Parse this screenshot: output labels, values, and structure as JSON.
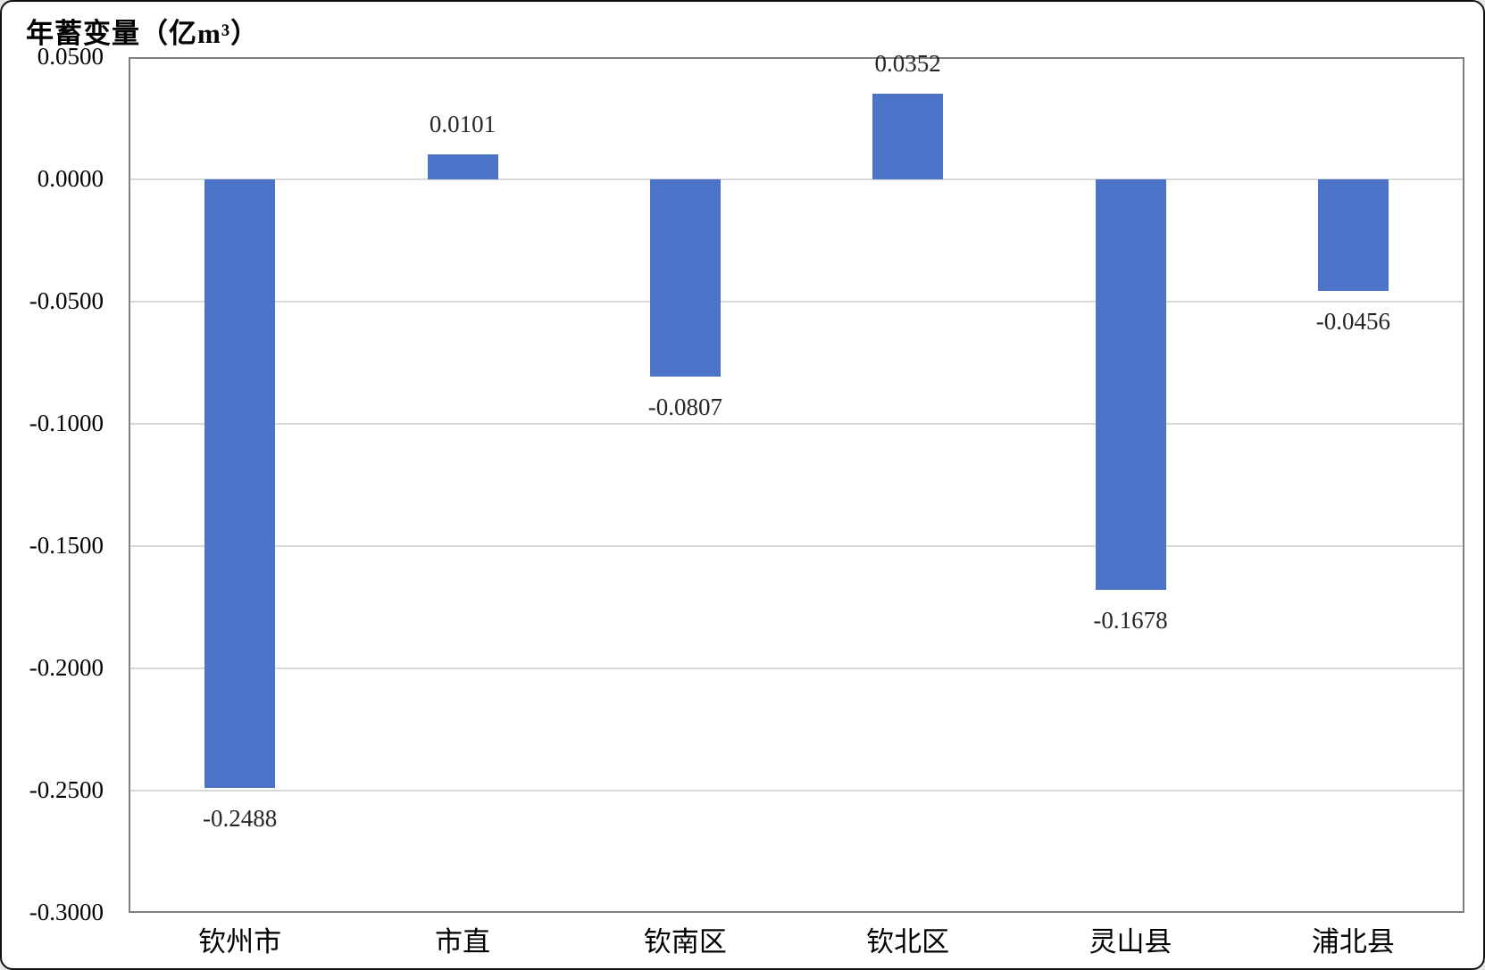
{
  "title": "年蓄变量（亿m³）",
  "chart_data": {
    "type": "bar",
    "title": "年蓄变量（亿m³）",
    "xlabel": "",
    "ylabel": "年蓄变量（亿m³）",
    "categories": [
      "钦州市",
      "市直",
      "钦南区",
      "钦北区",
      "灵山县",
      "浦北县"
    ],
    "values": [
      -0.2488,
      0.0101,
      -0.0807,
      0.0352,
      -0.1678,
      -0.0456
    ],
    "value_labels": [
      "-0.2488",
      "0.0101",
      "-0.0807",
      "0.0352",
      "-0.1678",
      "-0.0456"
    ],
    "ylim": [
      -0.3,
      0.05
    ],
    "ytick_step": 0.05,
    "yticks": [
      0.05,
      0.0,
      -0.05,
      -0.1,
      -0.15,
      -0.2,
      -0.25,
      -0.3
    ],
    "ytick_labels": [
      "0.0500",
      "0.0000",
      "-0.0500",
      "-0.1000",
      "-0.1500",
      "-0.2000",
      "-0.2500",
      "-0.3000"
    ],
    "grid": true,
    "legend": "none",
    "bar_color": "#4B74C8",
    "gridline_color": "#D9D9D9",
    "axis_border_color": "#808080",
    "tick_label_color": "#000000",
    "value_label_color": "#262626"
  }
}
